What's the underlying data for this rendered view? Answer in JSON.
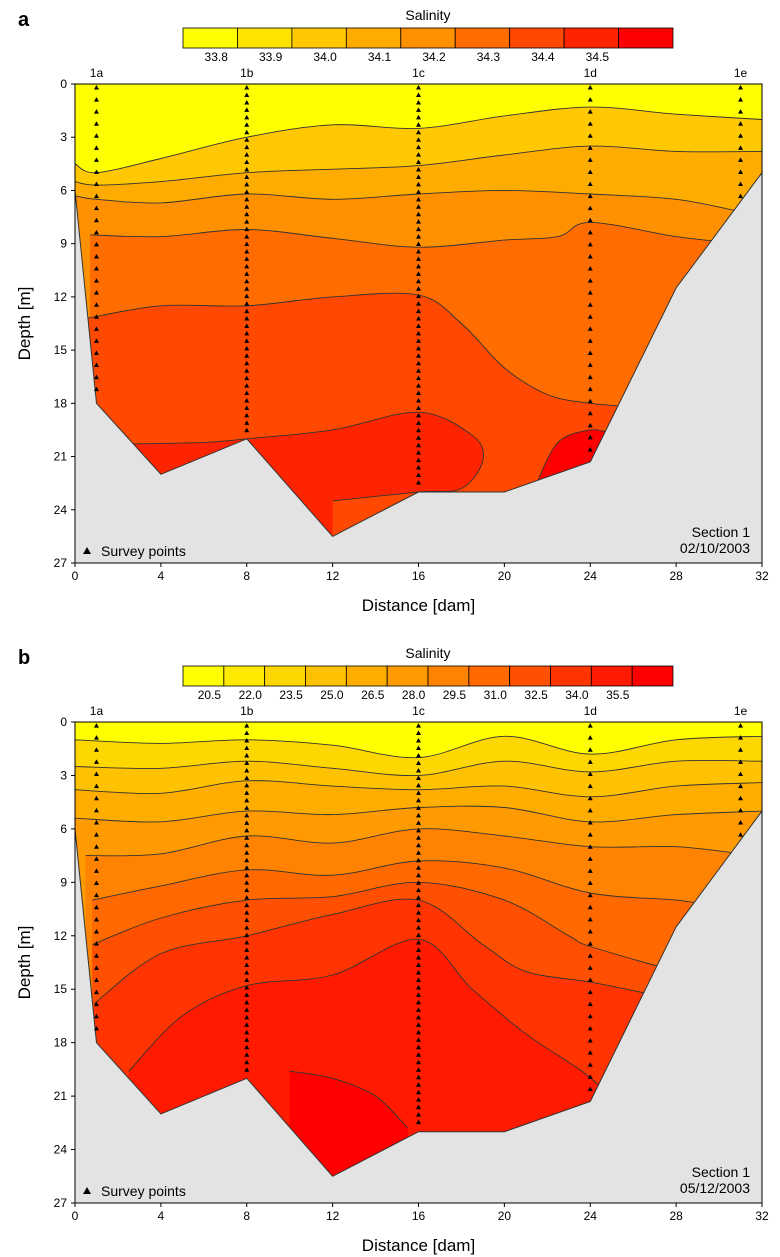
{
  "chart_data": [
    {
      "type": "heatmap",
      "panel_label": "a",
      "legend_title": "Salinity",
      "legend_ticks": [
        "33.8",
        "33.9",
        "34.0",
        "34.1",
        "34.2",
        "34.3",
        "34.4",
        "34.5"
      ],
      "xlabel": "Distance [dam]",
      "ylabel": "Depth [m]",
      "x_ticks": [
        "0",
        "4",
        "8",
        "12",
        "16",
        "20",
        "24",
        "28",
        "32"
      ],
      "y_ticks": [
        "0",
        "3",
        "6",
        "9",
        "12",
        "15",
        "18",
        "21",
        "24",
        "27"
      ],
      "xlim": [
        0,
        32
      ],
      "ylim": [
        0,
        27
      ],
      "stations": [
        {
          "label": "1a",
          "x": 1
        },
        {
          "label": "1b",
          "x": 8
        },
        {
          "label": "1c",
          "x": 16
        },
        {
          "label": "1d",
          "x": 24
        },
        {
          "label": "1e",
          "x": 31
        }
      ],
      "bottom_profile": [
        [
          0,
          6
        ],
        [
          1,
          18
        ],
        [
          4,
          22
        ],
        [
          8,
          20
        ],
        [
          12,
          25.5
        ],
        [
          16,
          23
        ],
        [
          20,
          23
        ],
        [
          24,
          21.3
        ],
        [
          28,
          11.5
        ],
        [
          32,
          5
        ]
      ],
      "contours": [
        [
          [
            0,
            4.5
          ],
          [
            1,
            5.0
          ],
          [
            4,
            4.2
          ],
          [
            8,
            3.0
          ],
          [
            12,
            2.3
          ],
          [
            16,
            2.5
          ],
          [
            20,
            1.8
          ],
          [
            24,
            1.3
          ],
          [
            28,
            1.7
          ],
          [
            32,
            2.0
          ]
        ],
        [
          [
            0,
            5.5
          ],
          [
            1,
            5.7
          ],
          [
            4,
            5.5
          ],
          [
            8,
            5.0
          ],
          [
            12,
            4.8
          ],
          [
            16,
            4.6
          ],
          [
            20,
            4.0
          ],
          [
            24,
            3.5
          ],
          [
            28,
            3.8
          ],
          [
            32,
            3.8
          ]
        ],
        [
          [
            0,
            6.3
          ],
          [
            1,
            6.5
          ],
          [
            4,
            6.7
          ],
          [
            8,
            6.2
          ],
          [
            12,
            6.5
          ],
          [
            16,
            6.2
          ],
          [
            20,
            6.0
          ],
          [
            24,
            6.2
          ],
          [
            28,
            6.5
          ],
          [
            31,
            7.2
          ]
        ],
        [
          [
            0.7,
            8.5
          ],
          [
            4,
            8.6
          ],
          [
            8,
            8.2
          ],
          [
            12,
            8.7
          ],
          [
            16,
            9.2
          ],
          [
            20,
            8.8
          ],
          [
            22.5,
            8.6
          ],
          [
            24,
            7.8
          ],
          [
            28,
            8.6
          ],
          [
            31,
            9.0
          ]
        ],
        [
          [
            0.6,
            13.2
          ],
          [
            4,
            12.5
          ],
          [
            8,
            12.5
          ],
          [
            12,
            12.0
          ],
          [
            16,
            11.9
          ],
          [
            18,
            13.5
          ],
          [
            20,
            16.0
          ],
          [
            22,
            17.5
          ],
          [
            24,
            18.0
          ],
          [
            26,
            18.2
          ]
        ],
        [
          [
            2,
            20.3
          ],
          [
            6,
            20.2
          ],
          [
            8,
            20.0
          ],
          [
            12,
            19.5
          ],
          [
            16,
            18.5
          ],
          [
            18.5,
            19.8
          ],
          [
            19,
            21.2
          ],
          [
            18,
            22.8
          ],
          [
            16,
            23.0
          ],
          [
            12,
            23.5
          ]
        ],
        [
          [
            21.5,
            22.5
          ],
          [
            22.5,
            20.2
          ],
          [
            24,
            19.5
          ],
          [
            25,
            19.7
          ]
        ]
      ],
      "section_label": "Section 1",
      "date": "02/10/2003",
      "legend_note": "Survey points"
    },
    {
      "type": "heatmap",
      "panel_label": "b",
      "legend_title": "Salinity",
      "legend_ticks": [
        "20.5",
        "22.0",
        "23.5",
        "25.0",
        "26.5",
        "28.0",
        "29.5",
        "31.0",
        "32.5",
        "34.0",
        "35.5"
      ],
      "xlabel": "Distance [dam]",
      "ylabel": "Depth [m]",
      "x_ticks": [
        "0",
        "4",
        "8",
        "12",
        "16",
        "20",
        "24",
        "28",
        "32"
      ],
      "y_ticks": [
        "0",
        "3",
        "6",
        "9",
        "12",
        "15",
        "18",
        "21",
        "24",
        "27"
      ],
      "xlim": [
        0,
        32
      ],
      "ylim": [
        0,
        27
      ],
      "stations": [
        {
          "label": "1a",
          "x": 1
        },
        {
          "label": "1b",
          "x": 8
        },
        {
          "label": "1c",
          "x": 16
        },
        {
          "label": "1d",
          "x": 24
        },
        {
          "label": "1e",
          "x": 31
        }
      ],
      "bottom_profile": [
        [
          0,
          6
        ],
        [
          1,
          18
        ],
        [
          4,
          22
        ],
        [
          8,
          20
        ],
        [
          12,
          25.5
        ],
        [
          16,
          23
        ],
        [
          20,
          23
        ],
        [
          24,
          21.3
        ],
        [
          28,
          11.5
        ],
        [
          32,
          5
        ]
      ],
      "contours": [
        [
          [
            0,
            1.0
          ],
          [
            4,
            1.2
          ],
          [
            8,
            1.0
          ],
          [
            12,
            1.3
          ],
          [
            16,
            2.0
          ],
          [
            20,
            0.8
          ],
          [
            24,
            1.8
          ],
          [
            28,
            1.0
          ],
          [
            32,
            0.8
          ]
        ],
        [
          [
            0,
            2.5
          ],
          [
            4,
            2.6
          ],
          [
            8,
            2.2
          ],
          [
            12,
            2.6
          ],
          [
            16,
            3.0
          ],
          [
            20,
            2.2
          ],
          [
            24,
            2.8
          ],
          [
            28,
            2.2
          ],
          [
            32,
            2.2
          ]
        ],
        [
          [
            0,
            3.8
          ],
          [
            4,
            4.0
          ],
          [
            8,
            3.3
          ],
          [
            12,
            3.6
          ],
          [
            16,
            3.8
          ],
          [
            20,
            3.6
          ],
          [
            24,
            4.2
          ],
          [
            28,
            3.6
          ],
          [
            32,
            3.4
          ]
        ],
        [
          [
            0,
            5.4
          ],
          [
            4,
            5.6
          ],
          [
            8,
            5.0
          ],
          [
            12,
            5.2
          ],
          [
            16,
            4.8
          ],
          [
            20,
            4.8
          ],
          [
            24,
            5.6
          ],
          [
            28,
            5.2
          ],
          [
            32,
            5.0
          ]
        ],
        [
          [
            0.5,
            7.5
          ],
          [
            4,
            7.4
          ],
          [
            8,
            6.4
          ],
          [
            12,
            6.8
          ],
          [
            16,
            6.0
          ],
          [
            20,
            6.4
          ],
          [
            24,
            7.0
          ],
          [
            28,
            7.0
          ],
          [
            31,
            7.4
          ]
        ],
        [
          [
            0.8,
            10.0
          ],
          [
            4,
            9.2
          ],
          [
            8,
            8.3
          ],
          [
            12,
            8.6
          ],
          [
            16,
            7.8
          ],
          [
            20,
            8.2
          ],
          [
            24,
            9.6
          ],
          [
            28,
            10.0
          ],
          [
            30,
            10.4
          ]
        ],
        [
          [
            0.8,
            12.5
          ],
          [
            4,
            11.0
          ],
          [
            8,
            10.0
          ],
          [
            12,
            9.8
          ],
          [
            16,
            9.0
          ],
          [
            20,
            10.0
          ],
          [
            23,
            12.0
          ],
          [
            24,
            12.6
          ],
          [
            28,
            14.0
          ]
        ],
        [
          [
            0.9,
            15.8
          ],
          [
            4,
            13.0
          ],
          [
            8,
            12.0
          ],
          [
            12,
            10.8
          ],
          [
            16,
            10.0
          ],
          [
            19,
            12.5
          ],
          [
            21,
            14.0
          ],
          [
            24,
            14.6
          ],
          [
            26.5,
            15.2
          ]
        ],
        [
          [
            2.5,
            19.6
          ],
          [
            5,
            16.5
          ],
          [
            8,
            14.8
          ],
          [
            12,
            14.2
          ],
          [
            16,
            12.2
          ],
          [
            18.5,
            15.0
          ],
          [
            21,
            17.5
          ],
          [
            23.5,
            19.5
          ],
          [
            24.5,
            20.5
          ]
        ],
        [
          [
            10,
            19.6
          ],
          [
            12,
            20.0
          ],
          [
            14,
            21.0
          ],
          [
            15.5,
            22.8
          ]
        ]
      ],
      "section_label": "Section 1",
      "date": "05/12/2003",
      "legend_note": "Survey points"
    }
  ]
}
